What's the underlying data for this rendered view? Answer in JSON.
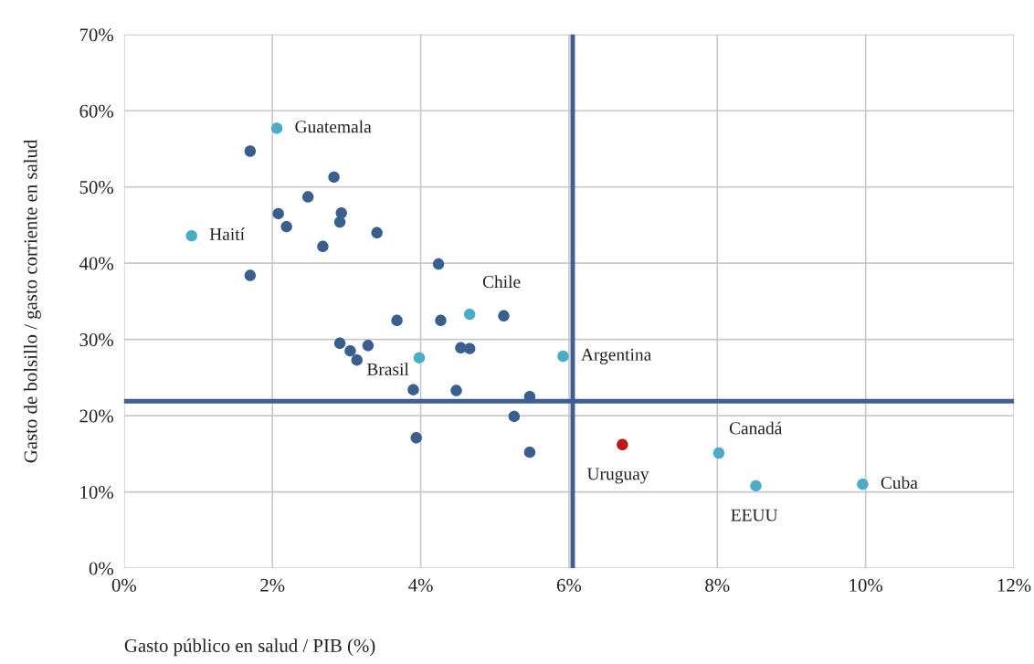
{
  "chart_data": {
    "type": "scatter",
    "xlabel": "Gasto público en salud / PIB (%)",
    "ylabel": "Gasto de bolsillo / gasto corriente en salud",
    "xlim": [
      0,
      12
    ],
    "ylim": [
      0,
      70
    ],
    "xticks": [
      {
        "value": 0,
        "label": "0%"
      },
      {
        "value": 2,
        "label": "2%"
      },
      {
        "value": 4,
        "label": "4%"
      },
      {
        "value": 6,
        "label": "6%"
      },
      {
        "value": 8,
        "label": "8%"
      },
      {
        "value": 10,
        "label": "10%"
      },
      {
        "value": 12,
        "label": "12%"
      }
    ],
    "yticks": [
      {
        "value": 0,
        "label": "0%"
      },
      {
        "value": 10,
        "label": "10%"
      },
      {
        "value": 20,
        "label": "20%"
      },
      {
        "value": 30,
        "label": "30%"
      },
      {
        "value": 40,
        "label": "40%"
      },
      {
        "value": 50,
        "label": "50%"
      },
      {
        "value": 60,
        "label": "60%"
      },
      {
        "value": 70,
        "label": "70%"
      }
    ],
    "grid": true,
    "marker": "circle",
    "series": [
      {
        "color": "#3a5f8f",
        "x": [
          1.7,
          2.83,
          2.48,
          2.08,
          2.93,
          2.19,
          2.91,
          3.41,
          2.68,
          1.7,
          4.24,
          3.68,
          4.27,
          5.12,
          2.91,
          3.29,
          3.05,
          3.14,
          4.54,
          4.66,
          3.9,
          4.48,
          5.47,
          5.26,
          3.94,
          5.47
        ],
        "values": [
          54.7,
          51.3,
          48.7,
          46.5,
          46.6,
          44.8,
          45.4,
          44.0,
          42.2,
          38.4,
          39.9,
          32.5,
          32.5,
          33.1,
          29.5,
          29.2,
          28.5,
          27.3,
          28.9,
          28.8,
          23.4,
          23.3,
          22.5,
          19.9,
          17.1,
          15.2
        ]
      },
      {
        "color": "#4bacc6",
        "x": [
          2.06,
          0.91,
          4.66,
          3.98,
          5.92,
          8.02,
          8.52,
          9.96
        ],
        "values": [
          57.7,
          43.6,
          33.3,
          27.6,
          27.8,
          15.1,
          10.8,
          11.0
        ]
      },
      {
        "color": "#c0161c",
        "x": [
          6.72
        ],
        "values": [
          16.2
        ]
      }
    ],
    "ref_lines": [
      {
        "axis": "x",
        "value": 6.05,
        "color": "#3e5f8f"
      },
      {
        "axis": "y",
        "value": 21.9,
        "color": "#3e5f8f"
      }
    ],
    "annotations": [
      {
        "text": "Guatemala",
        "x": 2.06,
        "y": 57.7
      },
      {
        "text": "Haití",
        "x": 0.91,
        "y": 43.6
      },
      {
        "text": "Chile",
        "x": 4.66,
        "y": 33.3
      },
      {
        "text": "Brasil",
        "x": 3.98,
        "y": 27.6
      },
      {
        "text": "Argentina",
        "x": 5.92,
        "y": 27.8
      },
      {
        "text": "Canadá",
        "x": 8.02,
        "y": 15.1
      },
      {
        "text": "Uruguay",
        "x": 6.72,
        "y": 16.2
      },
      {
        "text": "EEUU",
        "x": 8.52,
        "y": 10.8
      },
      {
        "text": "Cuba",
        "x": 9.96,
        "y": 11.0
      }
    ]
  }
}
